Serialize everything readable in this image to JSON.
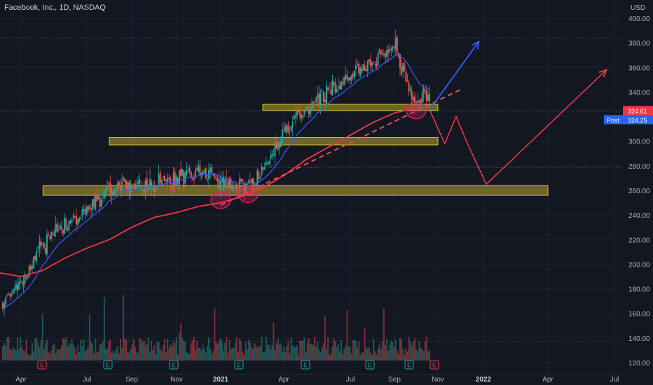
{
  "header": {
    "title": "Facebook, Inc., 1D, NASDAQ",
    "currency": "USD"
  },
  "chart_data": {
    "type": "candlestick",
    "y_axis": {
      "ticks": [
        400,
        380,
        360,
        340,
        320,
        300,
        280,
        260,
        240,
        220,
        200,
        180,
        160,
        140,
        120
      ],
      "tick_labels": [
        "400.00",
        "380.00",
        "360.00",
        "340.00",
        "320.00",
        "300.00",
        "280.00",
        "260.00",
        "240.00",
        "220.00",
        "200.00",
        "180.00",
        "160.00",
        "140.00",
        "120.00"
      ]
    },
    "x_axis": {
      "ticks": [
        {
          "label": "Apr",
          "bold": false
        },
        {
          "label": "Jul",
          "bold": false
        },
        {
          "label": "Sep",
          "bold": false
        },
        {
          "label": "Nov",
          "bold": false
        },
        {
          "label": "2021",
          "bold": true
        },
        {
          "label": "Apr",
          "bold": false
        },
        {
          "label": "Jul",
          "bold": false
        },
        {
          "label": "Sep",
          "bold": false
        },
        {
          "label": "Nov",
          "bold": false
        },
        {
          "label": "2022",
          "bold": true
        },
        {
          "label": "Apr",
          "bold": false
        },
        {
          "label": "Jul",
          "bold": false
        }
      ]
    },
    "price_labels": [
      {
        "value": 324.61,
        "text": "324.61",
        "color": "#f23645"
      },
      {
        "value": 324.25,
        "text": "Post 324.25",
        "prefix": "Post",
        "price": "324.25",
        "color": "#2962ff"
      }
    ],
    "zones": [
      {
        "from": 325,
        "to": 330,
        "start": "2021-03",
        "end": "2021-11"
      },
      {
        "from": 297,
        "to": 303,
        "start": "2020-08",
        "end": "2021-11"
      },
      {
        "from": 256,
        "to": 264,
        "start": "2020-05",
        "end": "2022-04"
      }
    ],
    "price_path": [
      [
        "2020-03",
        165
      ],
      [
        "2020-04",
        185
      ],
      [
        "2020-05",
        215
      ],
      [
        "2020-06",
        232
      ],
      [
        "2020-07",
        245
      ],
      [
        "2020-08",
        262
      ],
      [
        "2020-09",
        265
      ],
      [
        "2020-10",
        263
      ],
      [
        "2020-11",
        270
      ],
      [
        "2020-12",
        275
      ],
      [
        "2021-01",
        268
      ],
      [
        "2021-02",
        265
      ],
      [
        "2021-03",
        275
      ],
      [
        "2021-04",
        310
      ],
      [
        "2021-05",
        325
      ],
      [
        "2021-06",
        340
      ],
      [
        "2021-07",
        355
      ],
      [
        "2021-08",
        365
      ],
      [
        "2021-09",
        378
      ],
      [
        "2021-10",
        328
      ],
      [
        "2021-10-20",
        340
      ]
    ],
    "ma200": [
      [
        "2020-03",
        193
      ],
      [
        "2020-04",
        190
      ],
      [
        "2020-05",
        195
      ],
      [
        "2020-06",
        205
      ],
      [
        "2020-07",
        213
      ],
      [
        "2020-08",
        220
      ],
      [
        "2020-09",
        230
      ],
      [
        "2020-10",
        238
      ],
      [
        "2020-11",
        242
      ],
      [
        "2020-12",
        247
      ],
      [
        "2021-01",
        250
      ],
      [
        "2021-02",
        255
      ],
      [
        "2021-03",
        262
      ],
      [
        "2021-04",
        272
      ],
      [
        "2021-05",
        285
      ],
      [
        "2021-06",
        295
      ],
      [
        "2021-07",
        305
      ],
      [
        "2021-08",
        315
      ],
      [
        "2021-09",
        323
      ],
      [
        "2021-10",
        327
      ]
    ],
    "trend_line": [
      [
        "2021-01",
        248
      ],
      [
        "2021-12",
        342
      ]
    ],
    "projection_red": [
      [
        "2021-10-20",
        325
      ],
      [
        "2021-11-10",
        298
      ],
      [
        "2021-11-25",
        320
      ],
      [
        "2021-12-10",
        298
      ],
      [
        "2022-01-05",
        265
      ],
      [
        "2022-06-20",
        358
      ]
    ],
    "projection_blue": [
      [
        "2021-10-20",
        326
      ],
      [
        "2021-12-25",
        381
      ]
    ],
    "touch_circles": [
      [
        "2021-01",
        252
      ],
      [
        "2021-02-10",
        257
      ],
      [
        "2021-10",
        325
      ]
    ],
    "earnings_markers": [
      {
        "label": "E",
        "color": "#f23645"
      },
      {
        "label": "E",
        "color": "#26a69a"
      },
      {
        "label": "E",
        "color": "#26a69a"
      },
      {
        "label": "E",
        "color": "#26a69a"
      },
      {
        "label": "E",
        "color": "#26a69a"
      },
      {
        "label": "E",
        "color": "#26a69a"
      },
      {
        "label": "E",
        "color": "#26a69a"
      },
      {
        "label": "E",
        "color": "#f23645"
      }
    ],
    "colors": {
      "up": "#26a69a",
      "down": "#ef5350",
      "ma": "#f23645",
      "ema": "#2962ff",
      "zone": "#b8a52a"
    }
  }
}
